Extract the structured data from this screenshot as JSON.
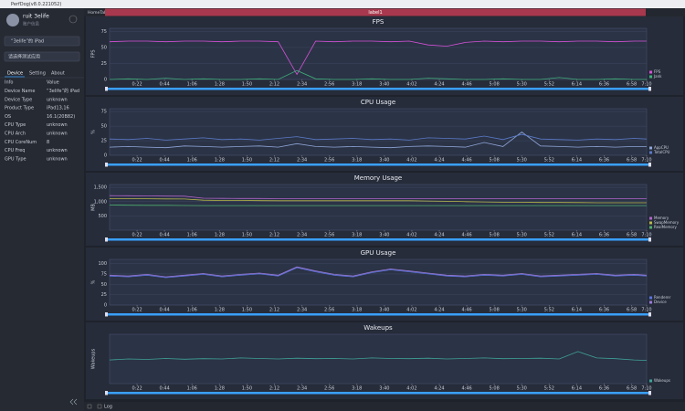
{
  "window_title": "PerfDog(v8.0.221052)",
  "sidebar": {
    "user": "ruit 3elife",
    "user_sub": "账户信息",
    "device": "“3elife”的 iPad",
    "app": "请选择测试应用",
    "tabs": [
      "Device",
      "Setting",
      "About"
    ],
    "table": {
      "header": [
        "Info",
        "Value"
      ],
      "rows": [
        [
          "Device Name",
          "“3elife”的 iPad"
        ],
        [
          "Device Type",
          "unknown"
        ],
        [
          "Product Type",
          "iPad13,16"
        ],
        [
          "OS",
          "16.1(20B82)"
        ],
        [
          "CPU Type",
          "unknown"
        ],
        [
          "CPU Arch",
          "unknown"
        ],
        [
          "CPU CoreNum",
          "8"
        ],
        [
          "CPU Freq",
          "unknown"
        ],
        [
          "GPU Type",
          "unknown"
        ]
      ]
    }
  },
  "tab": "HomeTab",
  "label": "label1",
  "log": "Log",
  "chart_data": [
    {
      "type": "line",
      "title": "FPS",
      "ylabel": "FPS",
      "ylim": [
        0,
        80
      ],
      "yticks": [
        0,
        25,
        50,
        75
      ],
      "xlim": [
        0,
        430
      ],
      "xticks": [
        {
          "value": 22,
          "label": "0:22"
        },
        {
          "value": 44,
          "label": "0:44"
        },
        {
          "value": 66,
          "label": "1:06"
        },
        {
          "value": 88,
          "label": "1:28"
        },
        {
          "value": 110,
          "label": "1:50"
        },
        {
          "value": 132,
          "label": "2:12"
        },
        {
          "value": 154,
          "label": "2:34"
        },
        {
          "value": 176,
          "label": "2:56"
        },
        {
          "value": 198,
          "label": "3:18"
        },
        {
          "value": 220,
          "label": "3:40"
        },
        {
          "value": 242,
          "label": "4:02"
        },
        {
          "value": 264,
          "label": "4:24"
        },
        {
          "value": 286,
          "label": "4:46"
        },
        {
          "value": 308,
          "label": "5:08"
        },
        {
          "value": 330,
          "label": "5:30"
        },
        {
          "value": 352,
          "label": "5:52"
        },
        {
          "value": 374,
          "label": "6:14"
        },
        {
          "value": 396,
          "label": "6:36"
        },
        {
          "value": 418,
          "label": "6:58"
        },
        {
          "value": 430,
          "label": "7:10"
        }
      ],
      "x": [
        0,
        15,
        30,
        45,
        60,
        75,
        90,
        105,
        120,
        135,
        150,
        165,
        180,
        195,
        210,
        225,
        240,
        255,
        270,
        285,
        300,
        315,
        330,
        345,
        360,
        375,
        390,
        405,
        420,
        430
      ],
      "series": [
        {
          "name": "FPS",
          "color": "#d552d8",
          "values": [
            59,
            60,
            60,
            59,
            60,
            60,
            59,
            60,
            60,
            59,
            8,
            60,
            59,
            60,
            60,
            59,
            60,
            54,
            52,
            58,
            60,
            59,
            60,
            60,
            59,
            60,
            60,
            59,
            60,
            60
          ]
        },
        {
          "name": "Jank",
          "color": "#3fae7a",
          "values": [
            0,
            1,
            0,
            2,
            0,
            1,
            0,
            0,
            1,
            0,
            14,
            1,
            0,
            0,
            1,
            0,
            0,
            2,
            1,
            0,
            0,
            1,
            0,
            0,
            3,
            0,
            0,
            1,
            0,
            0
          ]
        }
      ]
    },
    {
      "type": "line",
      "title": "CPU Usage",
      "ylabel": "%",
      "ylim": [
        0,
        80
      ],
      "yticks": [
        0,
        25,
        50,
        75
      ],
      "xlim": [
        0,
        430
      ],
      "xticks": [
        {
          "value": 22,
          "label": "0:22"
        },
        {
          "value": 44,
          "label": "0:44"
        },
        {
          "value": 66,
          "label": "1:06"
        },
        {
          "value": 88,
          "label": "1:28"
        },
        {
          "value": 110,
          "label": "1:50"
        },
        {
          "value": 132,
          "label": "2:12"
        },
        {
          "value": 154,
          "label": "2:34"
        },
        {
          "value": 176,
          "label": "2:56"
        },
        {
          "value": 198,
          "label": "3:18"
        },
        {
          "value": 220,
          "label": "3:40"
        },
        {
          "value": 242,
          "label": "4:02"
        },
        {
          "value": 264,
          "label": "4:24"
        },
        {
          "value": 286,
          "label": "4:46"
        },
        {
          "value": 308,
          "label": "5:08"
        },
        {
          "value": 330,
          "label": "5:30"
        },
        {
          "value": 352,
          "label": "5:52"
        },
        {
          "value": 374,
          "label": "6:14"
        },
        {
          "value": 396,
          "label": "6:36"
        },
        {
          "value": 418,
          "label": "6:58"
        },
        {
          "value": 430,
          "label": "7:10"
        }
      ],
      "x": [
        0,
        15,
        30,
        45,
        60,
        75,
        90,
        105,
        120,
        135,
        150,
        165,
        180,
        195,
        210,
        225,
        240,
        255,
        270,
        285,
        300,
        315,
        330,
        345,
        360,
        375,
        390,
        405,
        420,
        430
      ],
      "series": [
        {
          "name": "AppCPU",
          "color": "#8fa6d8",
          "values": [
            14,
            15,
            14,
            13,
            16,
            15,
            14,
            15,
            16,
            14,
            20,
            15,
            14,
            15,
            14,
            13,
            15,
            16,
            15,
            14,
            22,
            15,
            40,
            16,
            15,
            14,
            15,
            14,
            15,
            15
          ]
        },
        {
          "name": "TotalCPU",
          "color": "#5b7bc9",
          "values": [
            28,
            27,
            29,
            26,
            28,
            30,
            27,
            28,
            26,
            29,
            32,
            27,
            28,
            29,
            27,
            28,
            26,
            30,
            29,
            28,
            33,
            27,
            36,
            28,
            27,
            26,
            28,
            27,
            29,
            28
          ]
        }
      ]
    },
    {
      "type": "line",
      "title": "Memory Usage",
      "ylabel": "MB",
      "ylim": [
        0,
        1600
      ],
      "yticks": [
        500,
        {
          "value": 1000,
          "label": "1,000"
        },
        {
          "value": 1500,
          "label": "1,500"
        }
      ],
      "xlim": [
        0,
        430
      ],
      "xticks": [
        {
          "value": 22,
          "label": "0:22"
        },
        {
          "value": 44,
          "label": "0:44"
        },
        {
          "value": 66,
          "label": "1:06"
        },
        {
          "value": 88,
          "label": "1:28"
        },
        {
          "value": 110,
          "label": "1:50"
        },
        {
          "value": 132,
          "label": "2:12"
        },
        {
          "value": 154,
          "label": "2:34"
        },
        {
          "value": 176,
          "label": "2:56"
        },
        {
          "value": 198,
          "label": "3:18"
        },
        {
          "value": 220,
          "label": "3:40"
        },
        {
          "value": 242,
          "label": "4:02"
        },
        {
          "value": 264,
          "label": "4:24"
        },
        {
          "value": 286,
          "label": "4:46"
        },
        {
          "value": 308,
          "label": "5:08"
        },
        {
          "value": 330,
          "label": "5:30"
        },
        {
          "value": 352,
          "label": "5:52"
        },
        {
          "value": 374,
          "label": "6:14"
        },
        {
          "value": 396,
          "label": "6:36"
        },
        {
          "value": 418,
          "label": "6:58"
        },
        {
          "value": 430,
          "label": "7:10"
        }
      ],
      "x": [
        0,
        15,
        30,
        45,
        60,
        75,
        90,
        105,
        120,
        135,
        150,
        165,
        180,
        195,
        210,
        225,
        240,
        255,
        270,
        285,
        300,
        315,
        330,
        345,
        360,
        375,
        390,
        405,
        420,
        430
      ],
      "series": [
        {
          "name": "Memory",
          "color": "#b064c8",
          "values": [
            1210,
            1205,
            1200,
            1195,
            1190,
            1120,
            1115,
            1110,
            1110,
            1105,
            1100,
            1100,
            1100,
            1100,
            1100,
            1100,
            1100,
            1100,
            1100,
            1100,
            1100,
            1100,
            1100,
            1100,
            1100,
            1100,
            1100,
            1100,
            1100,
            1100
          ]
        },
        {
          "name": "SwapMemory",
          "color": "#b8b84a",
          "values": [
            1100,
            1100,
            1100,
            1095,
            1090,
            1050,
            1040,
            1040,
            1035,
            1030,
            1030,
            1030,
            1030,
            1030,
            1030,
            1030,
            1030,
            1020,
            1010,
            1000,
            990,
            980,
            975,
            970,
            970,
            965,
            960,
            960,
            960,
            960
          ]
        },
        {
          "name": "RealMemory",
          "color": "#4fae6e",
          "values": [
            880,
            875,
            870,
            870,
            865,
            860,
            860,
            860,
            860,
            860,
            860,
            860,
            860,
            860,
            860,
            860,
            860,
            860,
            860,
            860,
            860,
            860,
            860,
            860,
            860,
            860,
            860,
            860,
            860,
            860
          ]
        }
      ]
    },
    {
      "type": "line",
      "title": "GPU Usage",
      "ylabel": "%",
      "ylim": [
        0,
        110
      ],
      "yticks": [
        0,
        25,
        50,
        75,
        100
      ],
      "xlim": [
        0,
        430
      ],
      "xticks": [
        {
          "value": 22,
          "label": "0:22"
        },
        {
          "value": 44,
          "label": "0:44"
        },
        {
          "value": 66,
          "label": "1:06"
        },
        {
          "value": 88,
          "label": "1:28"
        },
        {
          "value": 110,
          "label": "1:50"
        },
        {
          "value": 132,
          "label": "2:12"
        },
        {
          "value": 154,
          "label": "2:34"
        },
        {
          "value": 176,
          "label": "2:56"
        },
        {
          "value": 198,
          "label": "3:18"
        },
        {
          "value": 220,
          "label": "3:40"
        },
        {
          "value": 242,
          "label": "4:02"
        },
        {
          "value": 264,
          "label": "4:24"
        },
        {
          "value": 286,
          "label": "4:46"
        },
        {
          "value": 308,
          "label": "5:08"
        },
        {
          "value": 330,
          "label": "5:30"
        },
        {
          "value": 352,
          "label": "5:52"
        },
        {
          "value": 374,
          "label": "6:14"
        },
        {
          "value": 396,
          "label": "6:36"
        },
        {
          "value": 418,
          "label": "6:58"
        },
        {
          "value": 430,
          "label": "7:10"
        }
      ],
      "x": [
        0,
        15,
        30,
        45,
        60,
        75,
        90,
        105,
        120,
        135,
        150,
        165,
        180,
        195,
        210,
        225,
        240,
        255,
        270,
        285,
        300,
        315,
        330,
        345,
        360,
        375,
        390,
        405,
        420,
        430
      ],
      "series": [
        {
          "name": "Renderer",
          "color": "#5a74e0",
          "values": [
            70,
            68,
            72,
            66,
            70,
            74,
            68,
            72,
            75,
            70,
            90,
            80,
            72,
            68,
            78,
            85,
            80,
            75,
            70,
            68,
            72,
            70,
            74,
            68,
            70,
            72,
            74,
            70,
            72,
            70
          ]
        },
        {
          "name": "Device",
          "color": "#9a7ad8",
          "values": [
            72,
            70,
            74,
            68,
            72,
            76,
            70,
            74,
            77,
            72,
            92,
            82,
            74,
            70,
            80,
            87,
            82,
            77,
            72,
            70,
            74,
            72,
            76,
            70,
            72,
            74,
            76,
            72,
            74,
            72
          ]
        }
      ]
    },
    {
      "type": "line",
      "title": "Wakeups",
      "ylabel": "Wakeups",
      "ylim": [
        0,
        1000
      ],
      "xlim": [
        0,
        430
      ],
      "xticks": [
        {
          "value": 22,
          "label": "0:22"
        },
        {
          "value": 44,
          "label": "0:44"
        },
        {
          "value": 66,
          "label": "1:06"
        },
        {
          "value": 88,
          "label": "1:28"
        },
        {
          "value": 110,
          "label": "1:50"
        },
        {
          "value": 132,
          "label": "2:12"
        },
        {
          "value": 154,
          "label": "2:34"
        },
        {
          "value": 176,
          "label": "2:56"
        },
        {
          "value": 198,
          "label": "3:18"
        },
        {
          "value": 220,
          "label": "3:40"
        },
        {
          "value": 242,
          "label": "4:02"
        },
        {
          "value": 264,
          "label": "4:24"
        },
        {
          "value": 286,
          "label": "4:46"
        },
        {
          "value": 308,
          "label": "5:08"
        },
        {
          "value": 330,
          "label": "5:30"
        },
        {
          "value": 352,
          "label": "5:52"
        },
        {
          "value": 374,
          "label": "6:14"
        },
        {
          "value": 396,
          "label": "6:36"
        },
        {
          "value": 418,
          "label": "6:58"
        },
        {
          "value": 430,
          "label": "7:10"
        }
      ],
      "x": [
        0,
        15,
        30,
        45,
        60,
        75,
        90,
        105,
        120,
        135,
        150,
        165,
        180,
        195,
        210,
        225,
        240,
        255,
        270,
        285,
        300,
        315,
        330,
        345,
        360,
        375,
        390,
        405,
        420,
        430
      ],
      "series": [
        {
          "name": "Wakeups",
          "color": "#3fa39a",
          "values": [
            480,
            500,
            490,
            510,
            495,
            505,
            500,
            520,
            510,
            500,
            515,
            505,
            510,
            500,
            520,
            510,
            505,
            515,
            500,
            510,
            520,
            505,
            510,
            515,
            500,
            650,
            520,
            505,
            480,
            470
          ]
        }
      ]
    }
  ]
}
